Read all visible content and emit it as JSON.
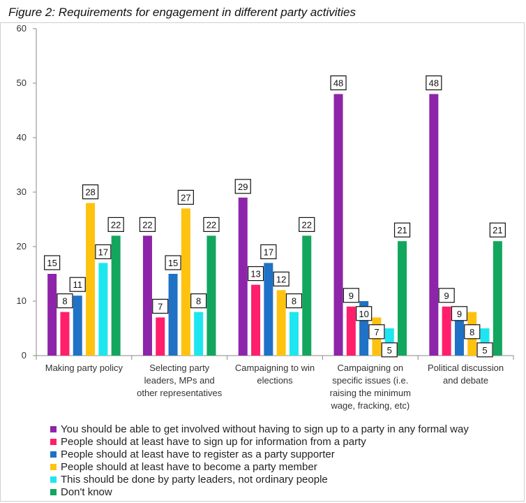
{
  "figure": {
    "title": "Figure 2: Requirements for engagement in different party activities"
  },
  "chart_data": {
    "type": "bar",
    "title": "Figure 2: Requirements for engagement in different party activities",
    "xlabel": "",
    "ylabel": "",
    "ylim": [
      0,
      60
    ],
    "yticks": [
      "0",
      "10",
      "20",
      "30",
      "40",
      "50",
      "60"
    ],
    "grid": false,
    "legend_position": "bottom",
    "categories": [
      [
        "Making party policy"
      ],
      [
        "Selecting party",
        "leaders, MPs and",
        "other representatives"
      ],
      [
        "Campaigning to win",
        "elections"
      ],
      [
        "Campaigning on",
        "specific issues (i.e.",
        "raising the minimum",
        "wage, fracking, etc)"
      ],
      [
        "Political discussion",
        "and debate"
      ]
    ],
    "series": [
      {
        "name": "You should be able to get involved without having to sign up to a party in any formal way",
        "color": "#8e24aa",
        "values": [
          15,
          22,
          29,
          48,
          48
        ]
      },
      {
        "name": "People should at least have to sign up for information from a party",
        "color": "#ff1f6b",
        "values": [
          8,
          7,
          13,
          9,
          9
        ]
      },
      {
        "name": "People should at least have to register as a party supporter",
        "color": "#1f72c6",
        "values": [
          11,
          15,
          17,
          10,
          9
        ]
      },
      {
        "name": "People should at least have to become a party member",
        "color": "#ffc20e",
        "values": [
          28,
          27,
          12,
          7,
          8
        ]
      },
      {
        "name": "This should be done by party leaders, not ordinary people",
        "color": "#1ee6f0",
        "values": [
          17,
          8,
          8,
          5,
          5
        ]
      },
      {
        "name": "Don't know",
        "color": "#12a65e",
        "values": [
          22,
          22,
          22,
          21,
          21
        ]
      }
    ],
    "labels": [
      [
        "15",
        "22",
        "29",
        "48",
        "48"
      ],
      [
        "8",
        "7",
        "13",
        "9",
        "9"
      ],
      [
        "11",
        "15",
        "17",
        "10",
        "9"
      ],
      [
        "28",
        "27",
        "12",
        "7",
        "8"
      ],
      [
        "17",
        "8",
        "8",
        "5",
        "5"
      ],
      [
        "22",
        "22",
        "22",
        "21",
        "21"
      ]
    ]
  }
}
